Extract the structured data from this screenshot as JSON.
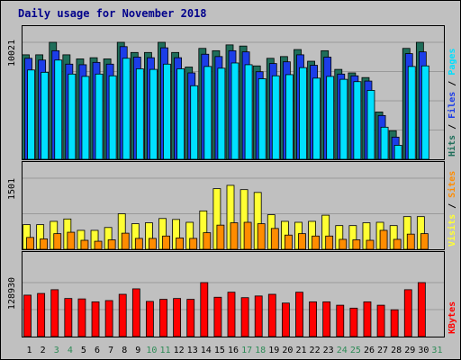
{
  "title": "Daily usage for November 2018",
  "colors": {
    "bg": "#c0c0c0",
    "panel": "#c0c0c0",
    "grid": "#9a9a9a",
    "hits": "#1f6e5a",
    "files": "#1c3de8",
    "pages": "#00e0ff",
    "visits": "#ffff33",
    "sites": "#ff8c00",
    "kbytes": "#ff0000",
    "weekday_label": "#000000",
    "weekend_label": "#2e8b57",
    "title": "#00008b"
  },
  "chart_data": [
    {
      "type": "bar",
      "panel": "pages-files-hits",
      "ymax_label": "10021",
      "ymax": 10021,
      "side_labels": [
        {
          "text": "Hits",
          "color": "#1f6e5a"
        },
        {
          "text": " / ",
          "color": "#000000"
        },
        {
          "text": "Files",
          "color": "#1c3de8"
        },
        {
          "text": " / ",
          "color": "#000000"
        },
        {
          "text": "Pages",
          "color": "#00e0ff"
        }
      ],
      "categories": [
        "1",
        "2",
        "3",
        "4",
        "5",
        "6",
        "7",
        "8",
        "9",
        "10",
        "11",
        "12",
        "13",
        "14",
        "15",
        "16",
        "17",
        "18",
        "19",
        "20",
        "21",
        "22",
        "23",
        "24",
        "25",
        "26",
        "27",
        "28",
        "29",
        "30",
        "31"
      ],
      "series": [
        {
          "name": "Hits",
          "values": [
            8950,
            8950,
            10021,
            8950,
            8600,
            8700,
            8600,
            10021,
            9150,
            9150,
            10021,
            9150,
            7900,
            9500,
            9300,
            9800,
            9700,
            8000,
            8650,
            8800,
            9400,
            8400,
            9300,
            7700,
            7400,
            7000,
            4050,
            2450,
            9500,
            10021,
            0
          ]
        },
        {
          "name": "Files",
          "values": [
            8650,
            8500,
            9300,
            8150,
            8100,
            8300,
            8150,
            9650,
            8750,
            8700,
            9550,
            8700,
            7400,
            9000,
            8800,
            9300,
            9200,
            7500,
            8200,
            8350,
            8950,
            8050,
            8750,
            7300,
            7150,
            6700,
            3750,
            1900,
            9050,
            9200,
            0
          ]
        },
        {
          "name": "Pages",
          "values": [
            7650,
            7450,
            8500,
            7300,
            7100,
            7300,
            7150,
            8650,
            7750,
            7700,
            8150,
            7750,
            6300,
            7950,
            7800,
            8250,
            8100,
            6900,
            7150,
            7250,
            7850,
            6950,
            7100,
            6850,
            6650,
            5900,
            2750,
            1200,
            7950,
            8000,
            0
          ]
        }
      ]
    },
    {
      "type": "bar",
      "panel": "visits-sites",
      "ymax_label": "1501",
      "ymax": 1501,
      "side_labels": [
        {
          "text": "Visits",
          "color": "#ffff33"
        },
        {
          "text": " / ",
          "color": "#000000"
        },
        {
          "text": "Sites",
          "color": "#ff8c00"
        }
      ],
      "categories": [
        "1",
        "2",
        "3",
        "4",
        "5",
        "6",
        "7",
        "8",
        "9",
        "10",
        "11",
        "12",
        "13",
        "14",
        "15",
        "16",
        "17",
        "18",
        "19",
        "20",
        "21",
        "22",
        "23",
        "24",
        "25",
        "26",
        "27",
        "28",
        "29",
        "30",
        "31"
      ],
      "series": [
        {
          "name": "Visits",
          "values": [
            520,
            520,
            590,
            640,
            400,
            400,
            460,
            750,
            540,
            560,
            650,
            630,
            570,
            810,
            1280,
            1350,
            1260,
            1200,
            730,
            590,
            570,
            590,
            720,
            500,
            500,
            560,
            570,
            500,
            690,
            690,
            0
          ]
        },
        {
          "name": "Sites",
          "values": [
            250,
            220,
            330,
            360,
            190,
            170,
            200,
            340,
            230,
            230,
            280,
            240,
            230,
            350,
            510,
            560,
            570,
            540,
            440,
            300,
            330,
            280,
            280,
            210,
            200,
            190,
            400,
            210,
            320,
            330,
            0
          ]
        }
      ]
    },
    {
      "type": "bar",
      "panel": "kbytes",
      "ymax_label": "128930",
      "ymax": 128930,
      "side_labels": [
        {
          "text": "KBytes",
          "color": "#ff0000"
        }
      ],
      "categories": [
        "1",
        "2",
        "3",
        "4",
        "5",
        "6",
        "7",
        "8",
        "9",
        "10",
        "11",
        "12",
        "13",
        "14",
        "15",
        "16",
        "17",
        "18",
        "19",
        "20",
        "21",
        "22",
        "23",
        "24",
        "25",
        "26",
        "27",
        "28",
        "29",
        "30",
        "31"
      ],
      "series": [
        {
          "name": "KBytes",
          "values": [
            99000,
            103000,
            112000,
            91000,
            90000,
            83000,
            86000,
            101000,
            114000,
            84000,
            89000,
            91000,
            89000,
            128930,
            94000,
            106000,
            93000,
            97000,
            101000,
            80000,
            106000,
            83000,
            83000,
            75000,
            68000,
            83000,
            75000,
            64000,
            112000,
            128930,
            0
          ]
        }
      ]
    }
  ],
  "x_labels": [
    {
      "text": "1",
      "weekend": false
    },
    {
      "text": "2",
      "weekend": false
    },
    {
      "text": "3",
      "weekend": true
    },
    {
      "text": "4",
      "weekend": true
    },
    {
      "text": "5",
      "weekend": false
    },
    {
      "text": "6",
      "weekend": false
    },
    {
      "text": "7",
      "weekend": false
    },
    {
      "text": "8",
      "weekend": false
    },
    {
      "text": "9",
      "weekend": false
    },
    {
      "text": "10",
      "weekend": true
    },
    {
      "text": "11",
      "weekend": true
    },
    {
      "text": "12",
      "weekend": false
    },
    {
      "text": "13",
      "weekend": false
    },
    {
      "text": "14",
      "weekend": false
    },
    {
      "text": "15",
      "weekend": false
    },
    {
      "text": "16",
      "weekend": false
    },
    {
      "text": "17",
      "weekend": true
    },
    {
      "text": "18",
      "weekend": true
    },
    {
      "text": "19",
      "weekend": false
    },
    {
      "text": "20",
      "weekend": false
    },
    {
      "text": "21",
      "weekend": false
    },
    {
      "text": "22",
      "weekend": false
    },
    {
      "text": "23",
      "weekend": false
    },
    {
      "text": "24",
      "weekend": true
    },
    {
      "text": "25",
      "weekend": true
    },
    {
      "text": "26",
      "weekend": false
    },
    {
      "text": "27",
      "weekend": false
    },
    {
      "text": "28",
      "weekend": false
    },
    {
      "text": "29",
      "weekend": false
    },
    {
      "text": "30",
      "weekend": false
    },
    {
      "text": "31",
      "weekend": true
    }
  ]
}
